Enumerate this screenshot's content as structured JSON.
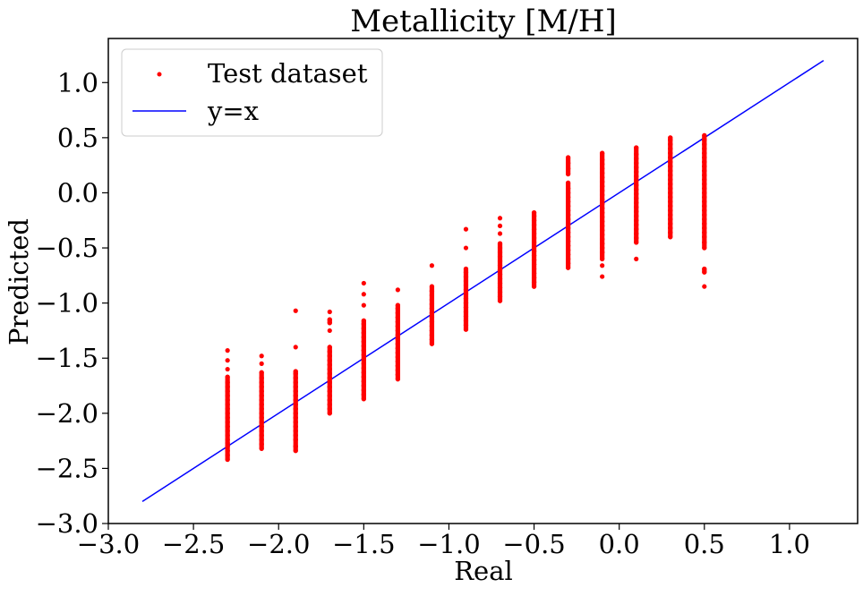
{
  "chart_data": {
    "type": "scatter",
    "title": "Metallicity [M/H]",
    "xlabel": "Real",
    "ylabel": "Predicted",
    "xlim": [
      -3.0,
      1.4
    ],
    "ylim": [
      -3.0,
      1.4
    ],
    "xticks": [
      -3.0,
      -2.5,
      -2.0,
      -1.5,
      -1.0,
      -0.5,
      0.0,
      0.5,
      1.0
    ],
    "yticks": [
      -3.0,
      -2.5,
      -2.0,
      -1.5,
      -1.0,
      -0.5,
      0.0,
      0.5,
      1.0
    ],
    "xtick_labels": [
      "−3.0",
      "−2.5",
      "−2.0",
      "−1.5",
      "−1.0",
      "−0.5",
      "0.0",
      "0.5",
      "1.0"
    ],
    "ytick_labels": [
      "−3.0",
      "−2.5",
      "−2.0",
      "−1.5",
      "−1.0",
      "−0.5",
      "0.0",
      "0.5",
      "1.0"
    ],
    "grid": false,
    "legend_position": "top-left",
    "series": [
      {
        "name": "Test dataset",
        "kind": "scatter",
        "color": "#ff0000",
        "groups": [
          {
            "x": -2.3,
            "y": [
              -2.42,
              -2.38,
              -2.34,
              -2.3,
              -2.27,
              -2.24,
              -2.2,
              -2.16,
              -2.12,
              -2.08,
              -2.04,
              -2.0,
              -1.96,
              -1.92,
              -1.88,
              -1.84,
              -1.8,
              -1.76,
              -1.72,
              -1.67,
              -1.6,
              -1.52,
              -1.43
            ]
          },
          {
            "x": -2.1,
            "y": [
              -2.32,
              -2.28,
              -2.24,
              -2.2,
              -2.16,
              -2.12,
              -2.08,
              -2.04,
              -2.0,
              -1.96,
              -1.92,
              -1.88,
              -1.84,
              -1.8,
              -1.76,
              -1.72,
              -1.68,
              -1.63,
              -1.55,
              -1.48
            ]
          },
          {
            "x": -1.9,
            "y": [
              -2.34,
              -2.3,
              -2.24,
              -2.2,
              -2.16,
              -2.12,
              -2.08,
              -2.04,
              -2.0,
              -1.96,
              -1.92,
              -1.88,
              -1.84,
              -1.8,
              -1.76,
              -1.72,
              -1.68,
              -1.64,
              -1.62,
              -1.4,
              -1.07
            ]
          },
          {
            "x": -1.7,
            "y": [
              -2.0,
              -1.96,
              -1.92,
              -1.88,
              -1.84,
              -1.8,
              -1.76,
              -1.72,
              -1.68,
              -1.64,
              -1.6,
              -1.56,
              -1.52,
              -1.48,
              -1.44,
              -1.4,
              -1.25,
              -1.18,
              -1.15,
              -1.08
            ]
          },
          {
            "x": -1.5,
            "y": [
              -1.87,
              -1.83,
              -1.79,
              -1.75,
              -1.71,
              -1.67,
              -1.63,
              -1.59,
              -1.55,
              -1.51,
              -1.47,
              -1.43,
              -1.39,
              -1.35,
              -1.31,
              -1.27,
              -1.23,
              -1.19,
              -1.16,
              -1.02,
              -0.92,
              -0.82
            ]
          },
          {
            "x": -1.3,
            "y": [
              -1.69,
              -1.65,
              -1.61,
              -1.57,
              -1.53,
              -1.49,
              -1.45,
              -1.41,
              -1.37,
              -1.33,
              -1.29,
              -1.25,
              -1.21,
              -1.17,
              -1.13,
              -1.09,
              -1.05,
              -1.02,
              -0.88
            ]
          },
          {
            "x": -1.1,
            "y": [
              -1.37,
              -1.33,
              -1.29,
              -1.25,
              -1.21,
              -1.17,
              -1.13,
              -1.09,
              -1.05,
              -1.01,
              -0.97,
              -0.93,
              -0.89,
              -0.85,
              -0.66
            ]
          },
          {
            "x": -0.9,
            "y": [
              -1.24,
              -1.2,
              -1.16,
              -1.12,
              -1.08,
              -1.04,
              -1.0,
              -0.96,
              -0.92,
              -0.88,
              -0.84,
              -0.8,
              -0.76,
              -0.72,
              -0.69,
              -0.5,
              -0.33
            ]
          },
          {
            "x": -0.7,
            "y": [
              -0.98,
              -0.94,
              -0.9,
              -0.86,
              -0.82,
              -0.78,
              -0.74,
              -0.7,
              -0.66,
              -0.62,
              -0.58,
              -0.54,
              -0.5,
              -0.46,
              -0.37,
              -0.3,
              -0.23
            ]
          },
          {
            "x": -0.5,
            "y": [
              -0.85,
              -0.81,
              -0.77,
              -0.73,
              -0.69,
              -0.65,
              -0.61,
              -0.57,
              -0.53,
              -0.49,
              -0.45,
              -0.41,
              -0.37,
              -0.33,
              -0.29,
              -0.25,
              -0.21,
              -0.18
            ]
          },
          {
            "x": -0.3,
            "y": [
              -0.68,
              -0.64,
              -0.6,
              -0.56,
              -0.52,
              -0.48,
              -0.44,
              -0.4,
              -0.36,
              -0.32,
              -0.28,
              -0.24,
              -0.2,
              -0.16,
              -0.12,
              -0.08,
              -0.04,
              0.0,
              0.04,
              0.09,
              0.17,
              0.22,
              0.27,
              0.32
            ]
          },
          {
            "x": -0.1,
            "y": [
              -0.76,
              -0.66,
              -0.6,
              -0.54,
              -0.5,
              -0.46,
              -0.42,
              -0.38,
              -0.34,
              -0.3,
              -0.26,
              -0.22,
              -0.18,
              -0.14,
              -0.1,
              -0.06,
              -0.02,
              0.02,
              0.06,
              0.1,
              0.14,
              0.18,
              0.22,
              0.26,
              0.3,
              0.36
            ]
          },
          {
            "x": 0.1,
            "y": [
              -0.6,
              -0.45,
              -0.41,
              -0.37,
              -0.33,
              -0.29,
              -0.25,
              -0.21,
              -0.17,
              -0.13,
              -0.09,
              -0.05,
              -0.01,
              0.03,
              0.07,
              0.11,
              0.15,
              0.19,
              0.23,
              0.27,
              0.31,
              0.35,
              0.41
            ]
          },
          {
            "x": 0.3,
            "y": [
              -0.4,
              -0.36,
              -0.32,
              -0.28,
              -0.24,
              -0.2,
              -0.16,
              -0.12,
              -0.08,
              -0.04,
              0.0,
              0.04,
              0.08,
              0.12,
              0.16,
              0.2,
              0.24,
              0.28,
              0.32,
              0.36,
              0.4,
              0.44,
              0.48,
              0.5
            ]
          },
          {
            "x": 0.5,
            "y": [
              -0.85,
              -0.72,
              -0.69,
              -0.5,
              -0.45,
              -0.4,
              -0.36,
              -0.32,
              -0.28,
              -0.24,
              -0.2,
              -0.16,
              -0.12,
              -0.08,
              -0.04,
              0.0,
              0.04,
              0.08,
              0.12,
              0.16,
              0.2,
              0.24,
              0.28,
              0.32,
              0.36,
              0.4,
              0.44,
              0.48,
              0.52
            ]
          }
        ]
      },
      {
        "name": "y=x",
        "kind": "line",
        "color": "#0000ff",
        "x": [
          -2.8,
          1.2
        ],
        "y": [
          -2.8,
          1.2
        ]
      }
    ]
  }
}
